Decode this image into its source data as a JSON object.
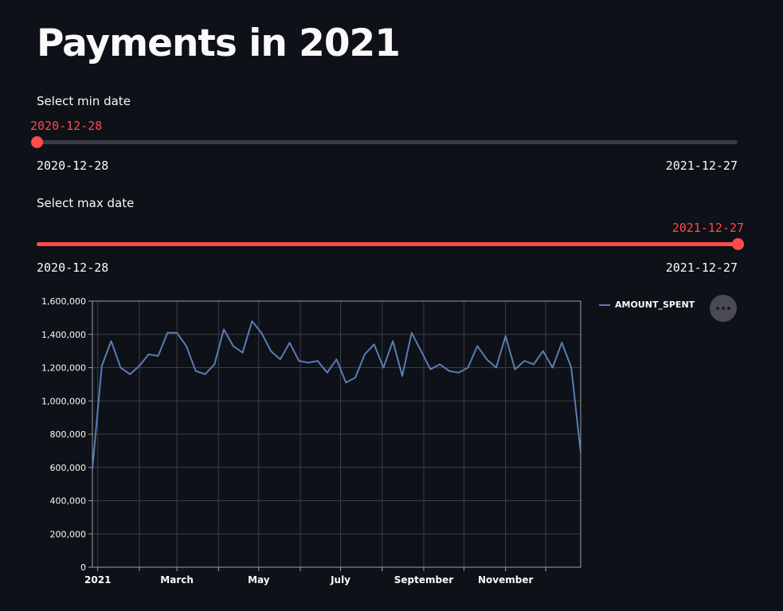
{
  "page": {
    "title": "Payments in 2021"
  },
  "min_slider": {
    "label": "Select min date",
    "value": "2020-12-28",
    "range_min": "2020-12-28",
    "range_max": "2021-12-27",
    "position_fraction": 0.0,
    "accent_color": "#ff4b4b"
  },
  "max_slider": {
    "label": "Select max date",
    "value": "2021-12-27",
    "range_min": "2020-12-28",
    "range_max": "2021-12-27",
    "position_fraction": 1.0,
    "accent_color": "#ff4b4b"
  },
  "chart_menu": {
    "icon": "more-horizontal-icon"
  },
  "chart_data": {
    "type": "line",
    "grid": true,
    "legend_placement": "top-right",
    "x_tick_labels": [
      "2021",
      "March",
      "May",
      "July",
      "September",
      "November"
    ],
    "x_tick_dates": [
      "2021-01-01",
      "2021-03-01",
      "2021-05-01",
      "2021-07-01",
      "2021-09-01",
      "2021-11-01"
    ],
    "x_range": [
      "2020-12-28",
      "2021-12-27"
    ],
    "y_tick_labels": [
      "0",
      "200,000",
      "400,000",
      "600,000",
      "800,000",
      "1,000,000",
      "1,200,000",
      "1,400,000",
      "1,600,000"
    ],
    "ylim": [
      0,
      1600000
    ],
    "series": [
      {
        "name": "AMOUNT_SPENT",
        "color": "#5b7cb5",
        "x": [
          "2020-12-28",
          "2021-01-04",
          "2021-01-11",
          "2021-01-18",
          "2021-01-25",
          "2021-02-01",
          "2021-02-08",
          "2021-02-15",
          "2021-02-22",
          "2021-03-01",
          "2021-03-08",
          "2021-03-15",
          "2021-03-22",
          "2021-03-29",
          "2021-04-05",
          "2021-04-12",
          "2021-04-19",
          "2021-04-26",
          "2021-05-03",
          "2021-05-10",
          "2021-05-17",
          "2021-05-24",
          "2021-05-31",
          "2021-06-07",
          "2021-06-14",
          "2021-06-21",
          "2021-06-28",
          "2021-07-05",
          "2021-07-12",
          "2021-07-19",
          "2021-07-26",
          "2021-08-02",
          "2021-08-09",
          "2021-08-16",
          "2021-08-23",
          "2021-08-30",
          "2021-09-06",
          "2021-09-13",
          "2021-09-20",
          "2021-09-27",
          "2021-10-04",
          "2021-10-11",
          "2021-10-18",
          "2021-10-25",
          "2021-11-01",
          "2021-11-08",
          "2021-11-15",
          "2021-11-22",
          "2021-11-29",
          "2021-12-06",
          "2021-12-13",
          "2021-12-20",
          "2021-12-27"
        ],
        "values": [
          590000,
          1210000,
          1360000,
          1200000,
          1160000,
          1210000,
          1280000,
          1270000,
          1410000,
          1410000,
          1330000,
          1180000,
          1160000,
          1220000,
          1430000,
          1330000,
          1290000,
          1480000,
          1410000,
          1300000,
          1250000,
          1350000,
          1240000,
          1230000,
          1240000,
          1170000,
          1250000,
          1110000,
          1140000,
          1280000,
          1340000,
          1200000,
          1360000,
          1150000,
          1410000,
          1300000,
          1190000,
          1220000,
          1180000,
          1170000,
          1200000,
          1330000,
          1250000,
          1200000,
          1390000,
          1190000,
          1240000,
          1220000,
          1300000,
          1200000,
          1350000,
          1200000,
          690000
        ]
      }
    ]
  }
}
